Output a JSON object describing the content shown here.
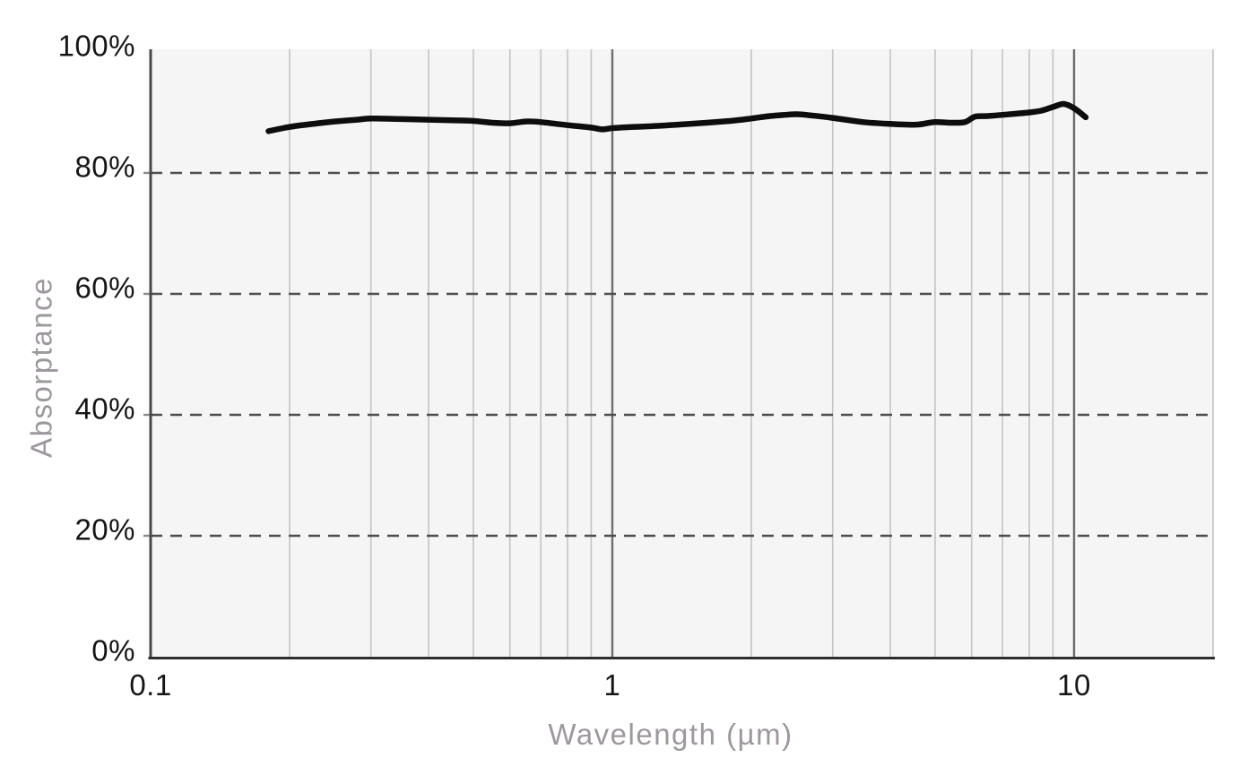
{
  "chart_data": {
    "type": "line",
    "title": "",
    "xlabel": "Wavelength (µm)",
    "ylabel": "Absorptance",
    "x_scale": "log",
    "xlim": [
      0.1,
      20
    ],
    "ylim": [
      0,
      100
    ],
    "grid": "on",
    "legend": "none",
    "x_ticks": [
      {
        "value": 0.1,
        "label": "0.1"
      },
      {
        "value": 1,
        "label": "1"
      },
      {
        "value": 10,
        "label": "10"
      }
    ],
    "y_ticks": [
      {
        "value": 0,
        "label": "0%"
      },
      {
        "value": 20,
        "label": "20%"
      },
      {
        "value": 40,
        "label": "40%"
      },
      {
        "value": 60,
        "label": "60%"
      },
      {
        "value": 80,
        "label": "80%"
      },
      {
        "value": 100,
        "label": "100%"
      }
    ],
    "minor_gridlines_x": [
      0.2,
      0.3,
      0.4,
      0.5,
      0.6,
      0.7,
      0.8,
      0.9,
      2,
      3,
      4,
      5,
      6,
      7,
      8,
      9,
      20
    ],
    "major_gridlines_x": [
      1,
      10
    ],
    "dashed_gridlines_y": [
      20,
      40,
      60,
      80
    ],
    "series": [
      {
        "name": "Absorptance",
        "x": [
          0.18,
          0.2,
          0.23,
          0.25,
          0.28,
          0.3,
          0.35,
          0.4,
          0.45,
          0.5,
          0.55,
          0.6,
          0.65,
          0.7,
          0.8,
          0.9,
          0.95,
          1.0,
          1.1,
          1.2,
          1.4,
          1.6,
          1.8,
          2.0,
          2.2,
          2.5,
          2.7,
          3.0,
          3.5,
          4.0,
          4.3,
          4.6,
          5.0,
          5.4,
          5.8,
          6.1,
          6.5,
          7.0,
          7.5,
          8.0,
          8.5,
          9.0,
          9.5,
          10.0,
          10.6
        ],
        "y": [
          86.9,
          87.6,
          88.2,
          88.5,
          88.8,
          89.0,
          88.9,
          88.8,
          88.7,
          88.6,
          88.3,
          88.2,
          88.5,
          88.4,
          87.9,
          87.5,
          87.2,
          87.4,
          87.6,
          87.7,
          88.0,
          88.3,
          88.6,
          89.0,
          89.4,
          89.7,
          89.5,
          89.1,
          88.4,
          88.1,
          88.0,
          88.0,
          88.4,
          88.3,
          88.4,
          89.3,
          89.4,
          89.6,
          89.8,
          90.0,
          90.3,
          90.9,
          91.4,
          90.7,
          89.2
        ]
      }
    ],
    "colors": {
      "line": "#0d0d0d",
      "plot_background": "#f5f5f5",
      "page_background": "#ffffff",
      "grid_minor": "#c4c4c4",
      "grid_major": "#6e6e6e",
      "grid_dashed": "#4d4d4d",
      "axis_line_left": "#484848",
      "axis_line_bottom": "#2e2e2e",
      "tick_mark": "#8a8a8a",
      "tick_text": "#161616",
      "axis_title_text": "#9c989d"
    }
  }
}
